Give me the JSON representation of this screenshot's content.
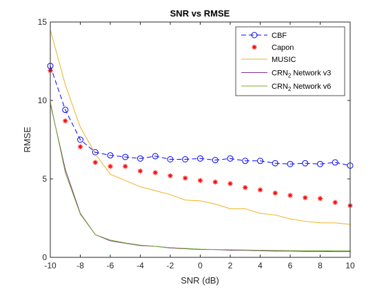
{
  "chart_data": {
    "type": "line",
    "title": "SNR vs RMSE",
    "xlabel": "SNR (dB)",
    "ylabel": "RMSE",
    "xlim": [
      -10,
      10
    ],
    "ylim": [
      0,
      15
    ],
    "xticks": [
      "-10",
      "-8",
      "-6",
      "-4",
      "-2",
      "0",
      "2",
      "4",
      "6",
      "8",
      "10"
    ],
    "yticks": [
      "0",
      "5",
      "10",
      "15"
    ],
    "grid": false,
    "legend_position": "top-right",
    "x": [
      -10,
      -9,
      -8,
      -7,
      -6,
      -5,
      -4,
      -3,
      -2,
      -1,
      0,
      1,
      2,
      3,
      4,
      5,
      6,
      7,
      8,
      9,
      10
    ],
    "series": [
      {
        "name": "CBF",
        "color": "#0000ff",
        "style": "dashed-circle",
        "values": [
          12.2,
          9.4,
          7.5,
          6.7,
          6.5,
          6.4,
          6.3,
          6.45,
          6.25,
          6.25,
          6.3,
          6.2,
          6.3,
          6.15,
          6.15,
          6.0,
          5.95,
          6.0,
          5.95,
          6.05,
          5.85
        ]
      },
      {
        "name": "Capon",
        "color": "#ff0000",
        "style": "star",
        "values": [
          11.9,
          8.7,
          7.05,
          6.05,
          5.8,
          5.8,
          5.5,
          5.4,
          5.2,
          5.05,
          4.9,
          4.8,
          4.7,
          4.45,
          4.3,
          4.1,
          3.95,
          3.8,
          3.75,
          3.5,
          3.3
        ]
      },
      {
        "name": "MUSIC",
        "color": "#edb120",
        "style": "line",
        "values": [
          14.5,
          11.0,
          8.3,
          6.6,
          5.3,
          4.9,
          4.5,
          4.25,
          4.0,
          3.65,
          3.6,
          3.4,
          3.1,
          3.1,
          2.8,
          2.7,
          2.45,
          2.3,
          2.2,
          2.2,
          2.1
        ]
      },
      {
        "name": "CRN",
        "name_sub": "2",
        "name_suffix": " Network v3",
        "color": "#7e2f8e",
        "style": "line",
        "values": [
          9.8,
          5.6,
          2.8,
          1.45,
          1.05,
          0.9,
          0.75,
          0.7,
          0.6,
          0.55,
          0.5,
          0.5,
          0.45,
          0.45,
          0.42,
          0.4,
          0.4,
          0.38,
          0.38,
          0.37,
          0.37
        ]
      },
      {
        "name": "CRN",
        "name_sub": "2",
        "name_suffix": " Network v6",
        "color": "#77ac30",
        "style": "line",
        "values": [
          9.9,
          5.4,
          2.75,
          1.45,
          1.1,
          0.92,
          0.78,
          0.7,
          0.62,
          0.57,
          0.52,
          0.5,
          0.48,
          0.47,
          0.45,
          0.44,
          0.43,
          0.42,
          0.42,
          0.41,
          0.41
        ]
      }
    ]
  }
}
